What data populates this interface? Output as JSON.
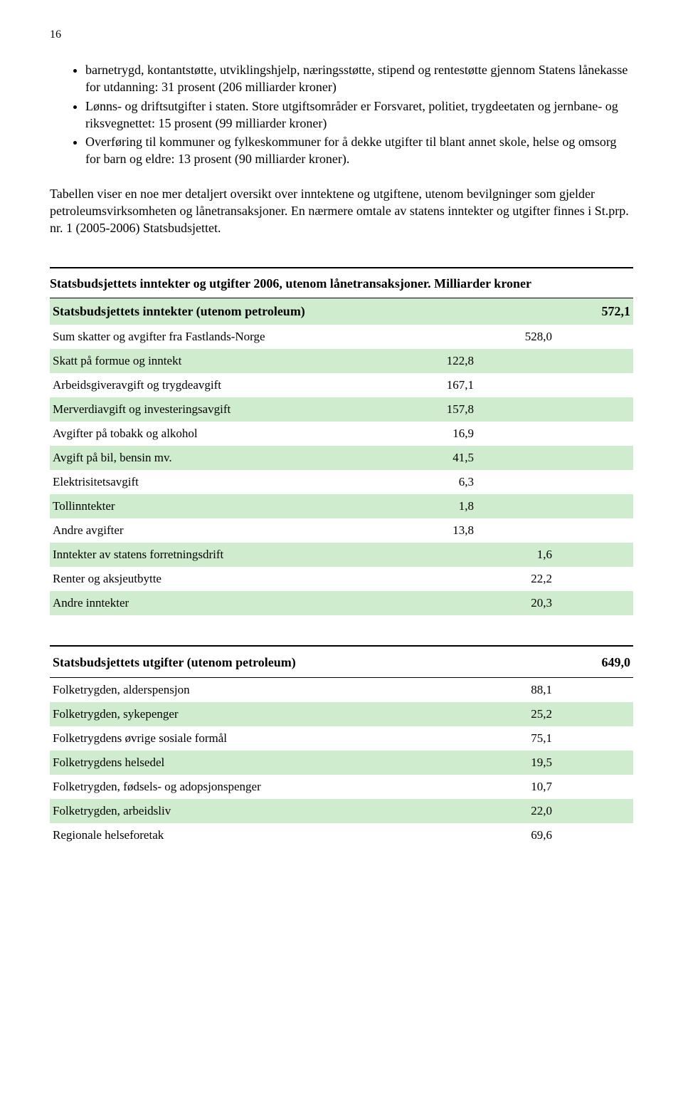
{
  "pageNumber": "16",
  "bullets": [
    "barnetrygd, kontantstøtte, utviklingshjelp, næringsstøtte, stipend og rentestøtte gjennom Statens lånekasse for utdanning: 31 prosent (206 milliarder kroner)",
    "Lønns- og driftsutgifter i staten. Store utgiftsområder er Forsvaret, politiet, trygdeetaten og jernbane- og riksvegnettet: 15 prosent (99 milliarder kroner)",
    "Overføring til kommuner og fylkeskommuner for å dekke utgifter til blant annet skole, helse og omsorg for barn og eldre: 13 prosent (90 milliarder kroner)."
  ],
  "para": "Tabellen viser en noe mer detaljert oversikt over inntektene og utgiftene, utenom bevilgninger som gjelder petroleumsvirksomheten og lånetransaksjoner. En nærmere omtale av statens inntekter og utgifter finnes i St.prp. nr. 1 (2005-2006) Statsbudsjettet.",
  "table1": {
    "title": "Statsbudsjettets inntekter og utgifter 2006, utenom lånetransaksjoner. Milliarder kroner",
    "headerRow": {
      "label": "Statsbudsjettets inntekter (utenom petroleum)",
      "col3": "572,1"
    },
    "rows": [
      {
        "label": "Sum skatter og avgifter fra Fastlands-Norge",
        "col1": "",
        "col2": "528,0",
        "green": false
      },
      {
        "label": "Skatt på formue og inntekt",
        "col1": "122,8",
        "col2": "",
        "green": true
      },
      {
        "label": "Arbeidsgiveravgift og trygdeavgift",
        "col1": "167,1",
        "col2": "",
        "green": false
      },
      {
        "label": "Merverdiavgift og investeringsavgift",
        "col1": "157,8",
        "col2": "",
        "green": true
      },
      {
        "label": "Avgifter på tobakk og alkohol",
        "col1": "16,9",
        "col2": "",
        "green": false
      },
      {
        "label": "Avgift på bil, bensin mv.",
        "col1": "41,5",
        "col2": "",
        "green": true
      },
      {
        "label": "Elektrisitetsavgift",
        "col1": "6,3",
        "col2": "",
        "green": false
      },
      {
        "label": "Tollinntekter",
        "col1": "1,8",
        "col2": "",
        "green": true
      },
      {
        "label": "Andre avgifter",
        "col1": "13,8",
        "col2": "",
        "green": false
      },
      {
        "label": "Inntekter av statens forretningsdrift",
        "col1": "",
        "col2": "1,6",
        "green": true
      },
      {
        "label": "Renter og aksjeutbytte",
        "col1": "",
        "col2": "22,2",
        "green": false
      },
      {
        "label": "Andre inntekter",
        "col1": "",
        "col2": "20,3",
        "green": true
      }
    ]
  },
  "table2": {
    "headerRow": {
      "label": "Statsbudsjettets utgifter (utenom petroleum)",
      "col3": "649,0"
    },
    "rows": [
      {
        "label": "Folketrygden, alderspensjon",
        "col2": "88,1",
        "green": false
      },
      {
        "label": "Folketrygden, sykepenger",
        "col2": "25,2",
        "green": true
      },
      {
        "label": "Folketrygdens øvrige sosiale formål",
        "col2": "75,1",
        "green": false
      },
      {
        "label": "Folketrygdens helsedel",
        "col2": "19,5",
        "green": true
      },
      {
        "label": "Folketrygden, fødsels- og adopsjonspenger",
        "col2": "10,7",
        "green": false
      },
      {
        "label": "Folketrygden, arbeidsliv",
        "col2": "22,0",
        "green": true
      },
      {
        "label": "Regionale helseforetak",
        "col2": "69,6",
        "green": false
      }
    ]
  },
  "colors": {
    "greenRow": "#d0ecce",
    "text": "#000000",
    "background": "#ffffff"
  }
}
